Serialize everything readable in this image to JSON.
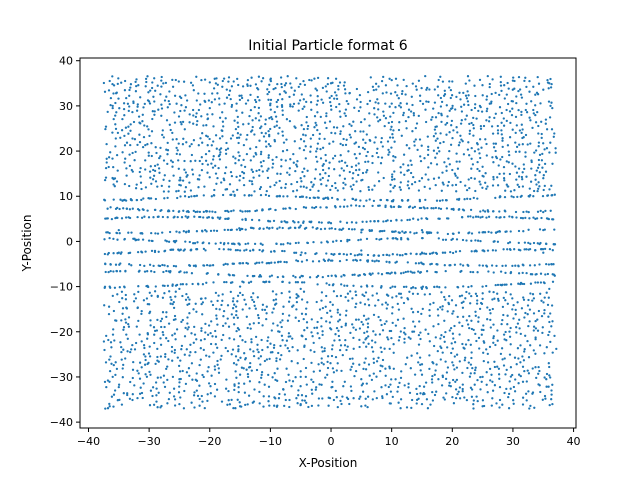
{
  "chart_data": {
    "type": "scatter",
    "title": "Initial Particle format 6",
    "xlabel": "X-Position",
    "ylabel": "Y-Position",
    "xlim": [
      -41.4,
      40.4
    ],
    "ylim": [
      -41.3,
      40.6
    ],
    "xticks": [
      -40,
      -30,
      -20,
      -10,
      0,
      10,
      20,
      30,
      40
    ],
    "yticks": [
      -40,
      -30,
      -20,
      -10,
      0,
      10,
      20,
      30,
      40
    ],
    "grid": false,
    "legend": "none",
    "marker_color": "#1f77b4",
    "marker": "small circle",
    "series": [
      {
        "x_range": [
          -37.5,
          37.2
        ],
        "y_range": [
          -37.0,
          36.8
        ],
        "approx_point_count": 6000,
        "pattern": "particles fill a rectangle; wavy horizontal rows of dots near y = 0 (about -10 to 10), loosely columnar and curved streaks elsewhere",
        "sample_points": [
          [
            -36.5,
            35.5
          ],
          [
            -33.0,
            34.8
          ],
          [
            -28.0,
            35.6
          ],
          [
            -20.0,
            35.2
          ],
          [
            -10.0,
            35.8
          ],
          [
            0.0,
            35.0
          ],
          [
            10.0,
            35.7
          ],
          [
            20.0,
            35.4
          ],
          [
            30.0,
            35.6
          ],
          [
            36.0,
            35.0
          ],
          [
            -36.0,
            30.0
          ],
          [
            -30.0,
            31.0
          ],
          [
            -20.0,
            29.5
          ],
          [
            -10.0,
            30.5
          ],
          [
            0.0,
            30.0
          ],
          [
            10.0,
            30.5
          ],
          [
            20.0,
            29.5
          ],
          [
            30.0,
            31.0
          ],
          [
            36.2,
            30.0
          ],
          [
            -36.0,
            14.0
          ],
          [
            -25.0,
            13.5
          ],
          [
            -15.0,
            14.5
          ],
          [
            -5.0,
            14.0
          ],
          [
            5.0,
            13.5
          ],
          [
            15.0,
            14.0
          ],
          [
            25.0,
            14.5
          ],
          [
            35.0,
            14.0
          ],
          [
            -35.0,
            2.5
          ],
          [
            -25.0,
            2.0
          ],
          [
            -15.0,
            2.5
          ],
          [
            -5.0,
            3.5
          ],
          [
            5.0,
            2.0
          ],
          [
            15.0,
            2.5
          ],
          [
            25.0,
            2.0
          ],
          [
            35.0,
            2.5
          ],
          [
            -35.0,
            -2.5
          ],
          [
            -25.0,
            -2.0
          ],
          [
            -15.0,
            -2.0
          ],
          [
            -5.0,
            -3.0
          ],
          [
            5.0,
            -2.0
          ],
          [
            15.0,
            -2.5
          ],
          [
            25.0,
            -2.0
          ],
          [
            35.0,
            -2.5
          ],
          [
            -36.5,
            -10.0
          ],
          [
            -25.0,
            -10.5
          ],
          [
            -15.0,
            -10.0
          ],
          [
            -5.0,
            -10.5
          ],
          [
            5.0,
            -10.0
          ],
          [
            15.0,
            -10.5
          ],
          [
            25.0,
            -10.0
          ],
          [
            36.0,
            -10.5
          ],
          [
            -36.0,
            -30.0
          ],
          [
            -25.0,
            -30.5
          ],
          [
            -15.0,
            -29.5
          ],
          [
            -5.0,
            -30.0
          ],
          [
            5.0,
            -30.5
          ],
          [
            15.0,
            -29.5
          ],
          [
            25.0,
            -30.0
          ],
          [
            35.5,
            -30.5
          ],
          [
            -36.5,
            -36.5
          ],
          [
            -25.0,
            -36.0
          ],
          [
            -15.0,
            -36.5
          ],
          [
            -5.0,
            -36.0
          ],
          [
            5.0,
            -36.5
          ],
          [
            15.0,
            -36.0
          ],
          [
            25.0,
            -36.5
          ],
          [
            36.5,
            -36.0
          ]
        ]
      }
    ]
  }
}
